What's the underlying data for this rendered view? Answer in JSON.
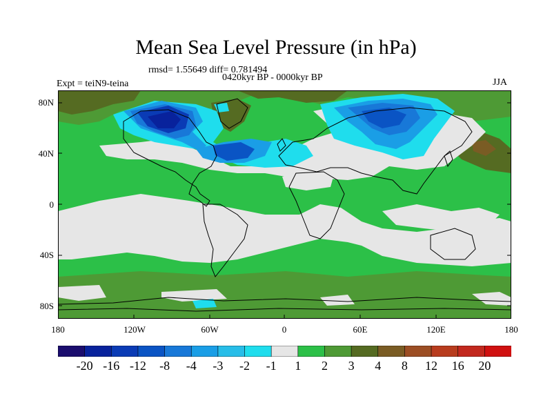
{
  "title": "Mean Sea Level Pressure (in hPa)",
  "stats": "rmsd= 1.55649 diff= 0.781494",
  "period": "0420kyr BP - 0000kyr BP",
  "experiment": "Expt = teiN9-teina",
  "season": "JJA",
  "axes": {
    "lat_labels": [
      "80N",
      "40N",
      "0",
      "40S",
      "80S"
    ],
    "lon_labels": [
      "180",
      "120W",
      "60W",
      "0",
      "60E",
      "120E",
      "180"
    ]
  },
  "legend": {
    "colors": [
      "#1b0d6e",
      "#08229c",
      "#0a3bb5",
      "#0a54c4",
      "#1878d8",
      "#1a9ee6",
      "#27bde8",
      "#1fdded",
      "#e6e6e6",
      "#2cc048",
      "#4e9a35",
      "#556b22",
      "#7a5c24",
      "#9c4e24",
      "#b83c1e",
      "#c2281e",
      "#d01010"
    ],
    "labels": [
      "-20",
      "-16",
      "-12",
      "-8",
      "-4",
      "-3",
      "-2",
      "-1",
      "1",
      "2",
      "3",
      "4",
      "8",
      "12",
      "16",
      "20"
    ]
  }
}
